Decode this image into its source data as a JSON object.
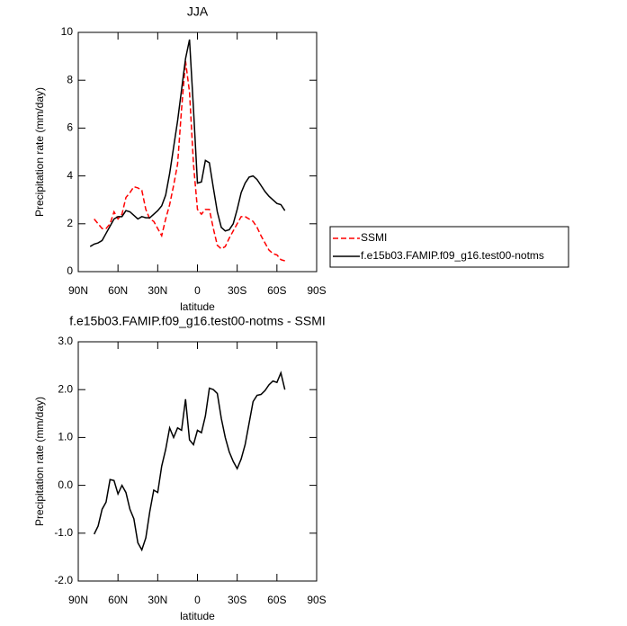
{
  "chart_data": [
    {
      "type": "line",
      "title": "JJA",
      "xlabel": "latitude",
      "ylabel": "Precipitation rate (mm/day)",
      "x": [
        81,
        78,
        75,
        72,
        69,
        66,
        63,
        60,
        57,
        54,
        51,
        48,
        45,
        42,
        39,
        36,
        33,
        30,
        27,
        24,
        21,
        18,
        15,
        12,
        9,
        6,
        3,
        0,
        -3,
        -6,
        -9,
        -12,
        -15,
        -18,
        -21,
        -24,
        -27,
        -30,
        -33,
        -36,
        -39,
        -42,
        -45,
        -48,
        -51,
        -54,
        -57,
        -60,
        -63,
        -66
      ],
      "series": [
        {
          "name": "SSMI",
          "color": "#ff0000",
          "dash": true,
          "values": [
            null,
            2.2,
            2.0,
            1.8,
            1.8,
            2.0,
            2.5,
            2.2,
            2.4,
            3.1,
            3.3,
            3.55,
            3.5,
            3.4,
            2.6,
            2.2,
            2.1,
            1.8,
            1.5,
            2.2,
            2.8,
            3.6,
            4.5,
            6.8,
            8.8,
            7.5,
            4.5,
            2.6,
            2.4,
            2.6,
            2.6,
            1.8,
            1.1,
            0.95,
            1.05,
            1.4,
            1.7,
            2.0,
            2.3,
            2.3,
            2.2,
            2.1,
            1.85,
            1.5,
            1.2,
            0.9,
            0.75,
            0.7,
            0.5,
            0.45
          ]
        },
        {
          "name": "f.e15b03.FAMIP.f09_g16.test00-notms",
          "color": "#000000",
          "dash": false,
          "values": [
            1.05,
            1.15,
            1.2,
            1.3,
            1.6,
            1.9,
            2.2,
            2.3,
            2.3,
            2.55,
            2.5,
            2.35,
            2.2,
            2.3,
            2.25,
            2.25,
            2.4,
            2.55,
            2.75,
            3.2,
            4.1,
            5.2,
            6.3,
            7.6,
            8.9,
            9.7,
            6.8,
            3.7,
            3.75,
            4.65,
            4.55,
            3.5,
            2.5,
            1.85,
            1.7,
            1.75,
            2.0,
            2.6,
            3.3,
            3.7,
            3.95,
            4.0,
            3.85,
            3.6,
            3.35,
            3.15,
            3.0,
            2.85,
            2.8,
            2.55
          ]
        }
      ],
      "xlim": [
        90,
        -90
      ],
      "xticks": [
        {
          "value": 90,
          "label": "90N"
        },
        {
          "value": 60,
          "label": "60N"
        },
        {
          "value": 30,
          "label": "30N"
        },
        0,
        {
          "value": -30,
          "label": "30S"
        },
        {
          "value": -60,
          "label": "60S"
        },
        {
          "value": -90,
          "label": "90S"
        }
      ],
      "ylim": [
        0,
        10
      ],
      "yticks": [
        0,
        2,
        4,
        6,
        8,
        10
      ],
      "legend": "right"
    },
    {
      "type": "line",
      "title": "f.e15b03.FAMIP.f09_g16.test00-notms - SSMI",
      "xlabel": "latitude",
      "ylabel": "Precipitation rate (mm/day)",
      "x": [
        78,
        75,
        72,
        69,
        66,
        63,
        60,
        57,
        54,
        51,
        48,
        45,
        42,
        39,
        36,
        33,
        30,
        27,
        24,
        21,
        18,
        15,
        12,
        9,
        6,
        3,
        0,
        -3,
        -6,
        -9,
        -12,
        -15,
        -18,
        -21,
        -24,
        -27,
        -30,
        -33,
        -36,
        -39,
        -42,
        -45,
        -48,
        -51,
        -54,
        -57,
        -60,
        -63,
        -66
      ],
      "series": [
        {
          "color": "#000000",
          "dash": false,
          "values": [
            -1.02,
            -0.85,
            -0.5,
            -0.35,
            0.12,
            0.1,
            -0.18,
            0.0,
            -0.15,
            -0.5,
            -0.7,
            -1.2,
            -1.35,
            -1.1,
            -0.55,
            -0.1,
            -0.15,
            0.4,
            0.75,
            1.2,
            1.0,
            1.2,
            1.15,
            1.8,
            0.95,
            0.85,
            1.15,
            1.1,
            1.45,
            2.03,
            2.0,
            1.92,
            1.4,
            1.0,
            0.7,
            0.5,
            0.35,
            0.55,
            0.85,
            1.3,
            1.75,
            1.88,
            1.9,
            1.98,
            2.1,
            2.18,
            2.15,
            2.35,
            2.0
          ]
        }
      ],
      "xlim": [
        90,
        -90
      ],
      "xticks": [
        {
          "value": 90,
          "label": "90N"
        },
        {
          "value": 60,
          "label": "60N"
        },
        {
          "value": 30,
          "label": "30N"
        },
        0,
        {
          "value": -30,
          "label": "30S"
        },
        {
          "value": -60,
          "label": "60S"
        },
        {
          "value": -90,
          "label": "90S"
        }
      ],
      "ylim": [
        -2,
        3
      ],
      "yticks": [
        {
          "value": -2,
          "label": "-2.0"
        },
        {
          "value": -1,
          "label": "-1.0"
        },
        {
          "value": 0,
          "label": "0.0"
        },
        {
          "value": 1,
          "label": "1.0"
        },
        {
          "value": 2,
          "label": "2.0"
        },
        {
          "value": 3,
          "label": "3.0"
        }
      ]
    }
  ]
}
